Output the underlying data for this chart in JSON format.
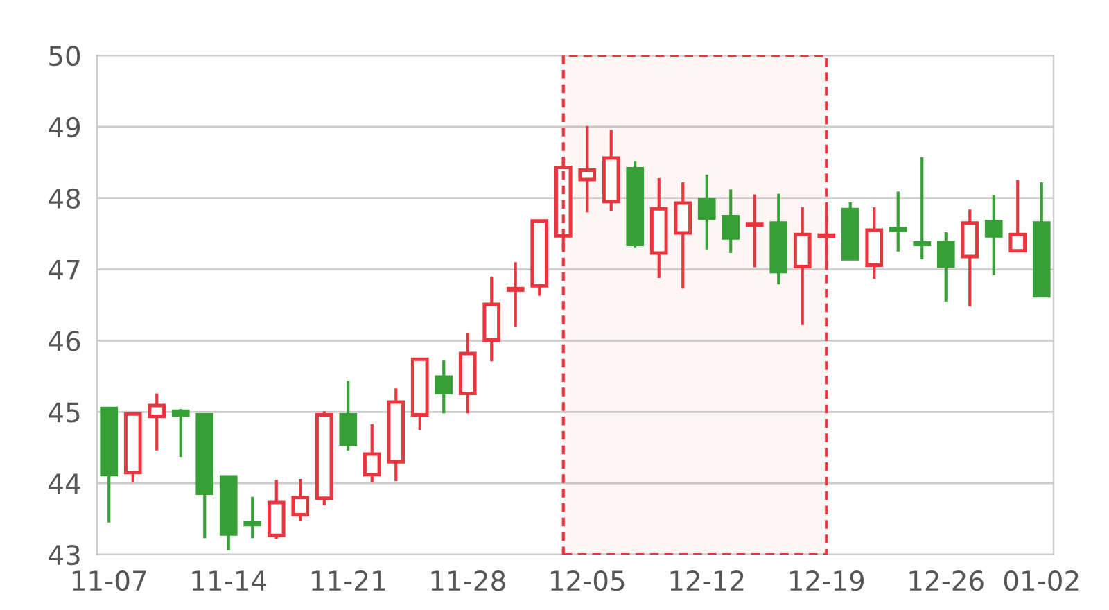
{
  "chart_data": {
    "type": "candlestick",
    "categories": [
      "11-07",
      null,
      null,
      null,
      null,
      "11-14",
      null,
      null,
      null,
      null,
      "11-21",
      null,
      null,
      null,
      null,
      "11-28",
      null,
      null,
      null,
      null,
      "12-05",
      null,
      null,
      null,
      null,
      "12-12",
      null,
      null,
      null,
      null,
      "12-19",
      null,
      null,
      null,
      null,
      "12-26",
      null,
      null,
      null,
      "01-02"
    ],
    "ohlc": [
      [
        45.05,
        45.07,
        43.45,
        44.12
      ],
      [
        44.15,
        44.99,
        44.01,
        44.97
      ],
      [
        44.94,
        45.26,
        44.46,
        45.09
      ],
      [
        45.01,
        45.04,
        44.37,
        44.96
      ],
      [
        44.96,
        44.97,
        43.23,
        43.86
      ],
      [
        44.09,
        44.1,
        43.06,
        43.29
      ],
      [
        43.45,
        43.81,
        43.23,
        43.42
      ],
      [
        43.27,
        44.05,
        43.22,
        43.73
      ],
      [
        43.56,
        44.06,
        43.47,
        43.8
      ],
      [
        43.79,
        45.01,
        43.69,
        44.96
      ],
      [
        44.96,
        45.44,
        44.46,
        44.55
      ],
      [
        44.12,
        44.83,
        44.01,
        44.41
      ],
      [
        44.3,
        45.33,
        44.03,
        45.14
      ],
      [
        44.96,
        45.76,
        44.75,
        45.74
      ],
      [
        45.49,
        45.72,
        44.98,
        45.27
      ],
      [
        45.26,
        46.11,
        44.98,
        45.82
      ],
      [
        46.01,
        46.9,
        45.71,
        46.51
      ],
      [
        46.71,
        47.1,
        46.19,
        46.73
      ],
      [
        46.77,
        47.69,
        46.63,
        47.68
      ],
      [
        47.47,
        48.57,
        47.3,
        48.43
      ],
      [
        48.26,
        49.01,
        47.8,
        48.39
      ],
      [
        47.95,
        48.96,
        47.82,
        48.56
      ],
      [
        48.41,
        48.52,
        47.3,
        47.35
      ],
      [
        47.23,
        48.28,
        46.88,
        47.85
      ],
      [
        47.51,
        48.22,
        46.73,
        47.93
      ],
      [
        47.98,
        48.33,
        47.28,
        47.72
      ],
      [
        47.74,
        48.12,
        47.23,
        47.44
      ],
      [
        47.62,
        48.05,
        47.03,
        47.64
      ],
      [
        47.65,
        48.06,
        46.79,
        46.97
      ],
      [
        47.04,
        47.87,
        46.22,
        47.49
      ],
      [
        47.46,
        47.83,
        46.99,
        47.48
      ],
      [
        47.84,
        47.94,
        47.14,
        47.15
      ],
      [
        47.06,
        47.87,
        46.87,
        47.55
      ],
      [
        47.57,
        48.09,
        47.25,
        47.55
      ],
      [
        47.37,
        48.57,
        47.14,
        47.35
      ],
      [
        47.38,
        47.52,
        46.55,
        47.05
      ],
      [
        47.18,
        47.84,
        46.48,
        47.65
      ],
      [
        47.67,
        48.04,
        46.92,
        47.47
      ],
      [
        47.26,
        48.25,
        47.25,
        47.49
      ],
      [
        47.65,
        48.22,
        46.62,
        46.63
      ]
    ],
    "colors": [
      "#36a036",
      "#e8363f",
      "#e8363f",
      "#36a036",
      "#36a036",
      "#36a036",
      "#36a036",
      "#e8363f",
      "#e8363f",
      "#e8363f",
      "#36a036",
      "#e8363f",
      "#e8363f",
      "#e8363f",
      "#36a036",
      "#e8363f",
      "#e8363f",
      "#e8363f",
      "#e8363f",
      "#e8363f",
      "#e8363f",
      "#e8363f",
      "#36a036",
      "#e8363f",
      "#e8363f",
      "#36a036",
      "#36a036",
      "#e8363f",
      "#36a036",
      "#e8363f",
      "#e8363f",
      "#36a036",
      "#e8363f",
      "#36a036",
      "#36a036",
      "#36a036",
      "#e8363f",
      "#36a036",
      "#e8363f",
      "#36a036"
    ],
    "ylim": [
      43,
      50
    ],
    "yticks": [
      43,
      44,
      45,
      46,
      47,
      48,
      49,
      50
    ],
    "grid": "y"
  }
}
